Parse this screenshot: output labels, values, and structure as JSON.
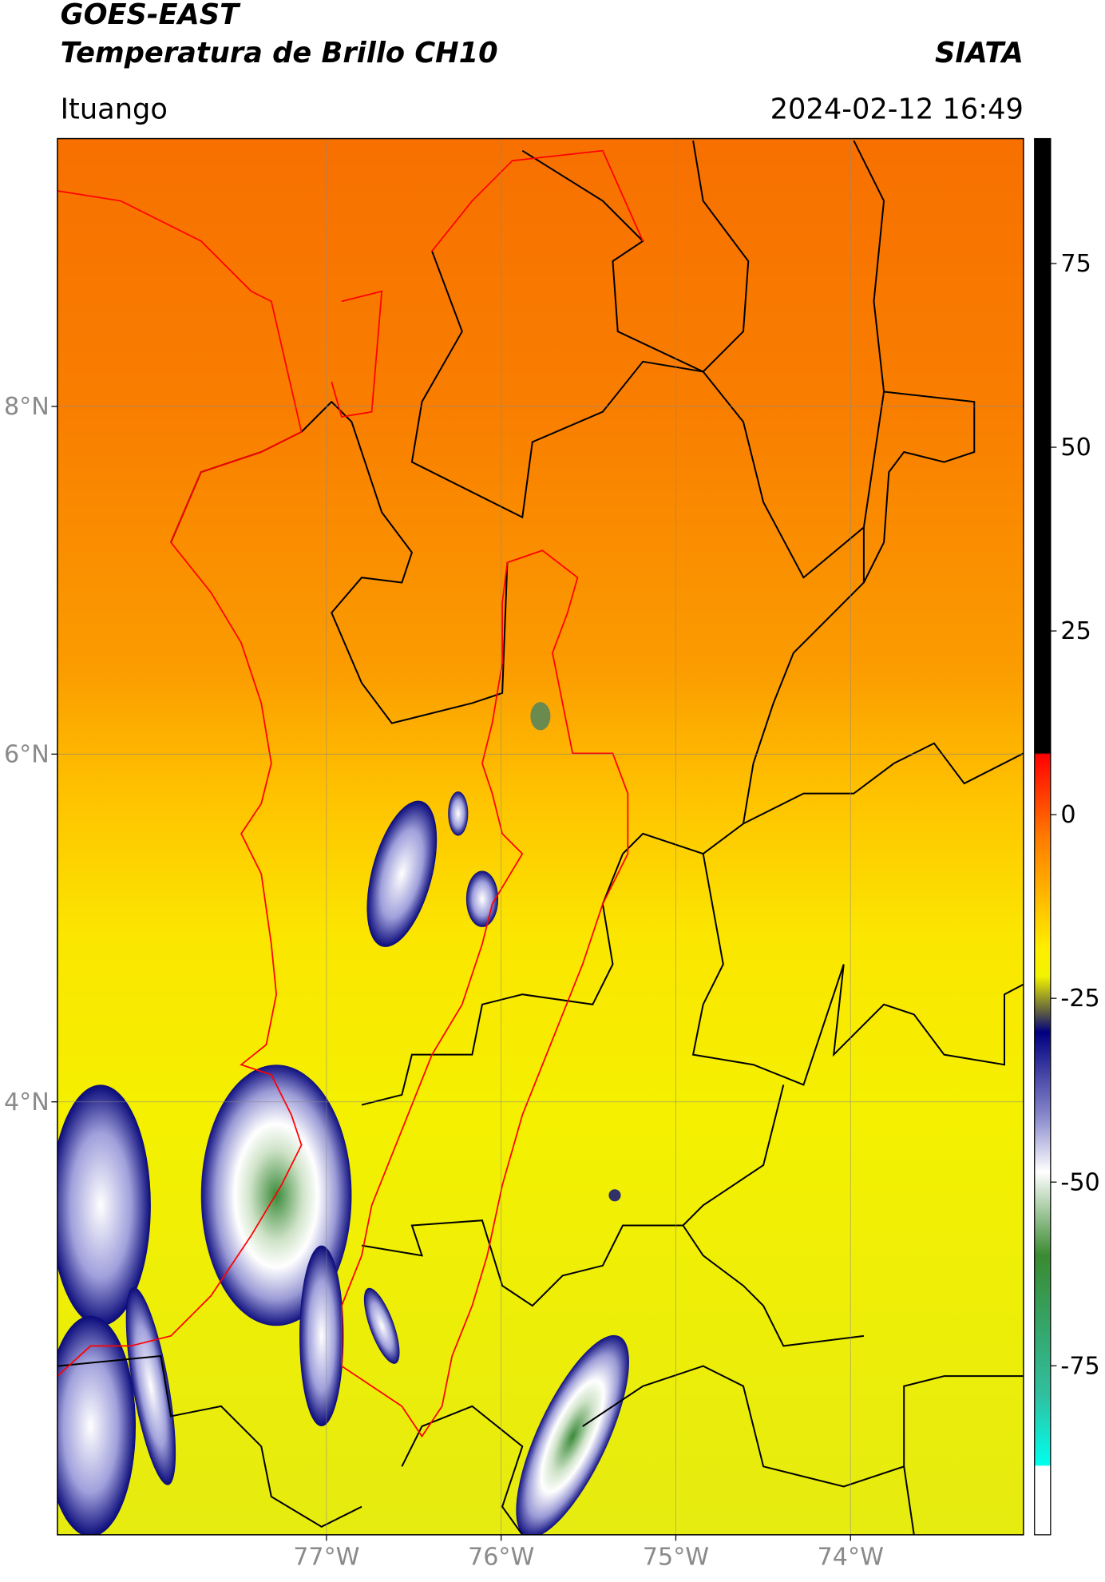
{
  "header": {
    "title_line1": "GOES-EAST",
    "title_line2": "Temperatura de Brillo CH10",
    "brand": "SIATA",
    "location": "Ituango",
    "timestamp": "2024-02-12 16:49"
  },
  "map": {
    "xlim": [
      -78.54,
      -73.01
    ],
    "ylim": [
      1.51,
      9.54
    ],
    "xticks": [
      {
        "value": -77,
        "label": "77°W"
      },
      {
        "value": -76,
        "label": "76°W"
      },
      {
        "value": -75,
        "label": "75°W"
      },
      {
        "value": -74,
        "label": "74°W"
      }
    ],
    "yticks": [
      {
        "value": 8,
        "label": "8°N"
      },
      {
        "value": 6,
        "label": "6°N"
      },
      {
        "value": 4,
        "label": "4°N"
      }
    ],
    "grid": true
  },
  "colorbar": {
    "lim": [
      -98,
      92
    ],
    "ticks": [
      75,
      50,
      25,
      0,
      -25,
      -50,
      -75
    ]
  }
}
